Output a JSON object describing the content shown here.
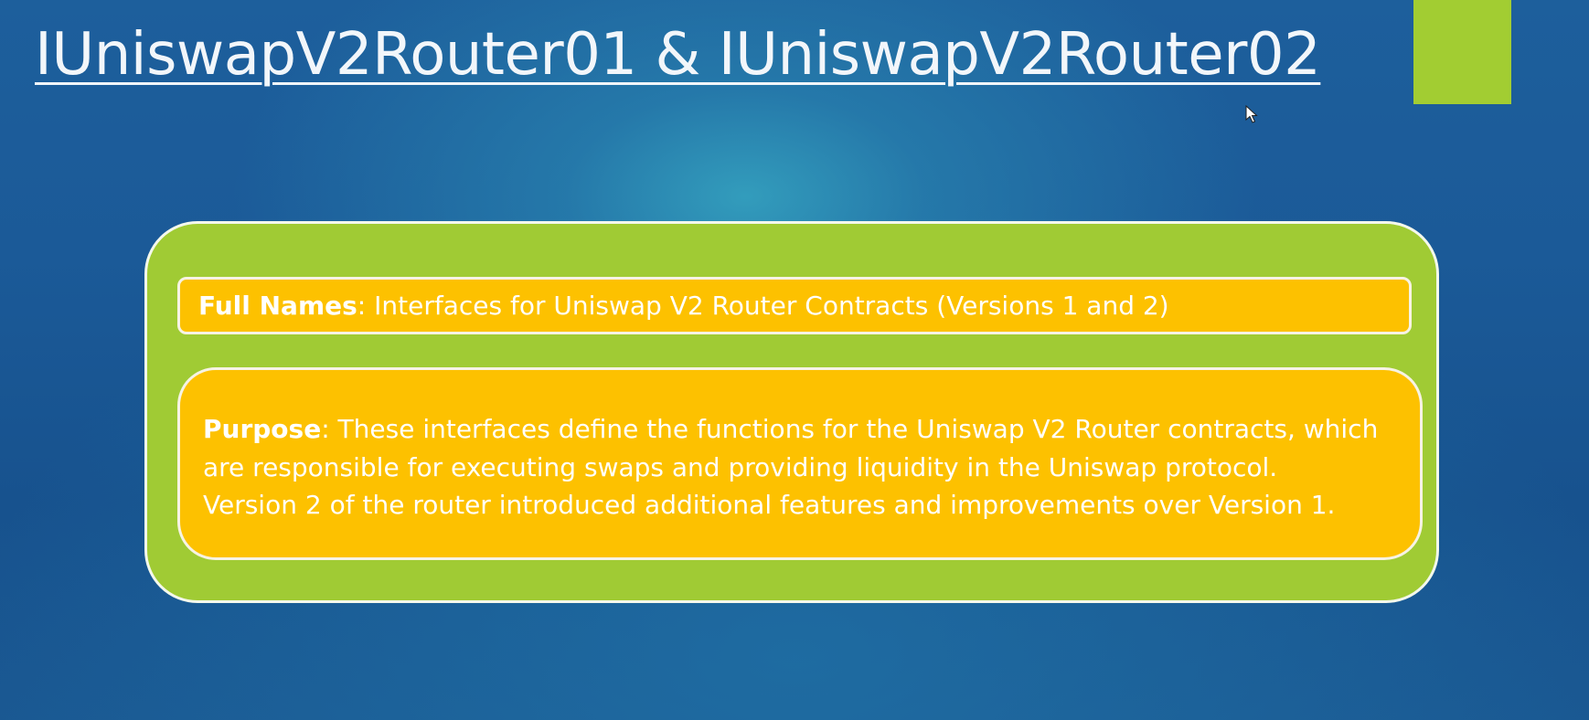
{
  "slide": {
    "title": "IUniswapV2Router01 & IUniswapV2Router02",
    "colors": {
      "background": "#1b5a98",
      "accent_green": "#a2cd32",
      "box_yellow": "#fdc100",
      "text": "#ffffff"
    }
  },
  "full_names": {
    "label": "Full Names",
    "text": ": Interfaces for Uniswap V2 Router Contracts (Versions 1 and 2)"
  },
  "purpose": {
    "label": "Purpose",
    "line1": ": These interfaces define the functions for the Uniswap V2 Router contracts, which",
    "line2": "are responsible for executing swaps and providing liquidity in the Uniswap protocol.",
    "line3": "Version 2 of the router introduced additional features and improvements over Version 1."
  },
  "icons": {
    "cursor": "mouse-pointer-icon"
  }
}
